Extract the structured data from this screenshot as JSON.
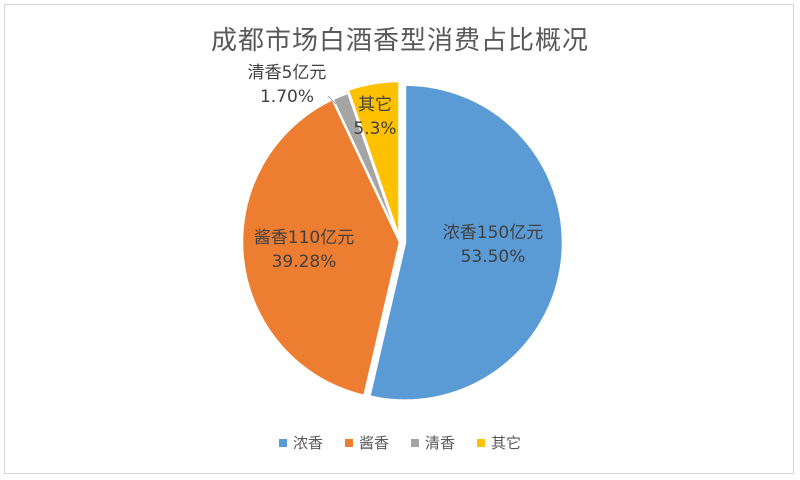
{
  "chart_data": {
    "type": "pie",
    "title": "成都市场白酒香型消费占比概况",
    "slices": [
      {
        "name": "浓香",
        "label": "浓香150亿元",
        "percent_label": "53.50%",
        "value": 53.5,
        "color": "#5B9BD5"
      },
      {
        "name": "酱香",
        "label": "酱香110亿元",
        "percent_label": "39.28%",
        "value": 39.28,
        "color": "#ED7D31"
      },
      {
        "name": "清香",
        "label": "清香5亿元",
        "percent_label": "1.70%",
        "value": 1.7,
        "color": "#A5A5A5"
      },
      {
        "name": "其它",
        "label": "其它",
        "percent_label": "5.3%",
        "value": 5.3,
        "color": "#FFC000"
      }
    ],
    "legend_position": "bottom",
    "start_angle": "12 o'clock",
    "direction": "clockwise"
  }
}
